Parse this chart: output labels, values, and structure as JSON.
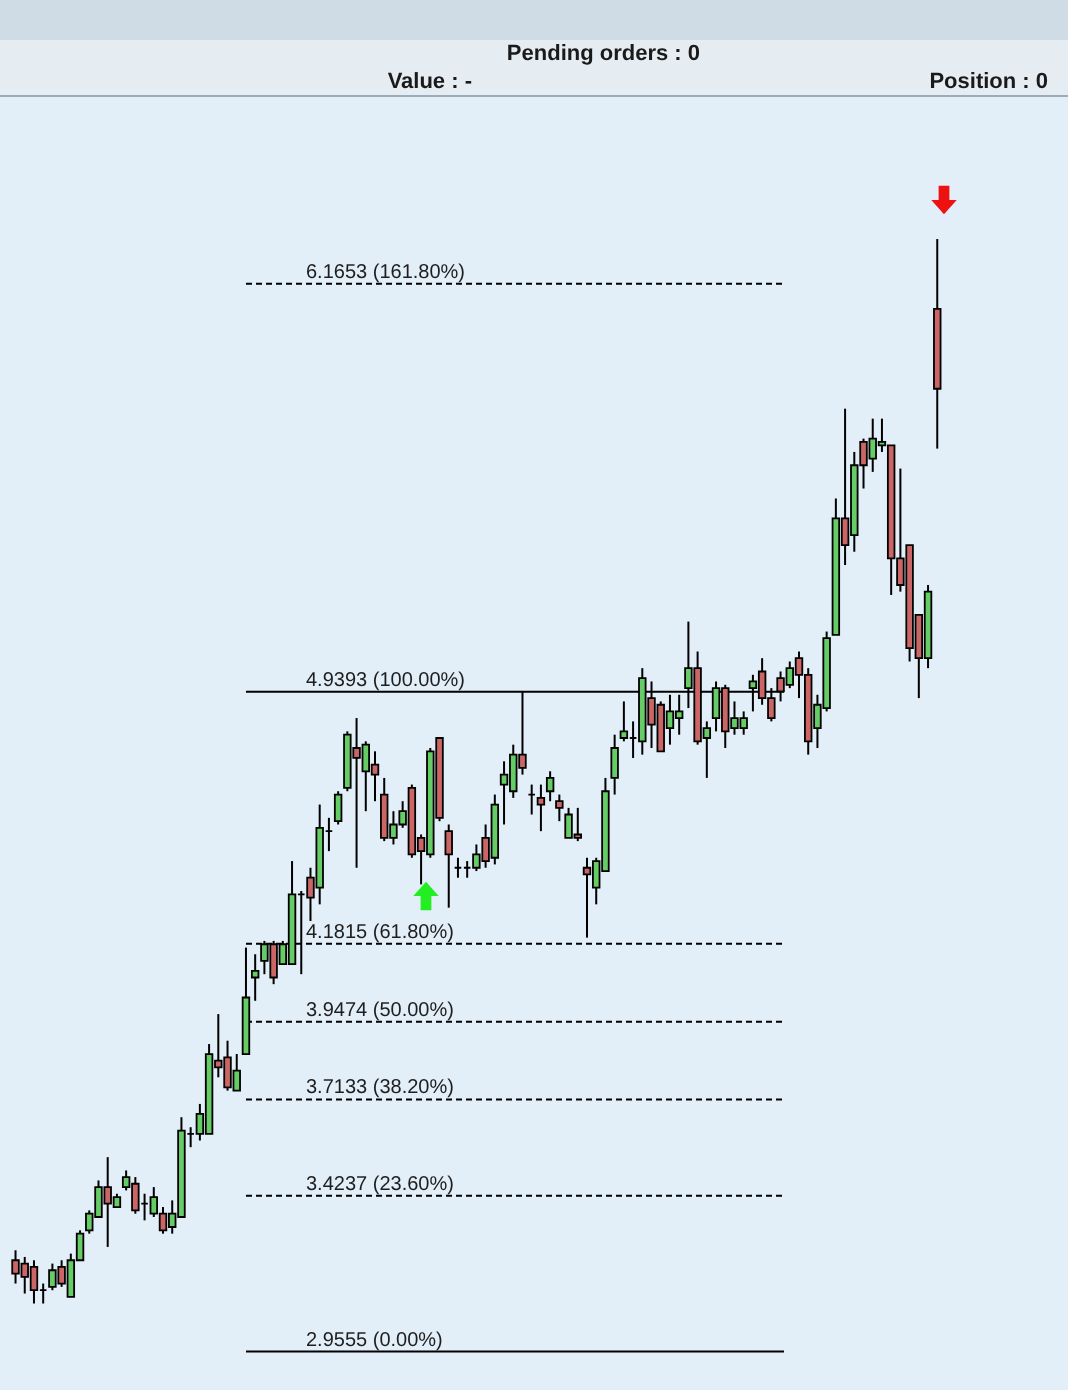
{
  "chart_data": {
    "type": "candlestick",
    "categories": [
      null,
      null,
      null,
      null,
      null,
      null,
      null,
      null,
      null,
      null,
      null,
      null,
      null,
      null,
      null,
      null,
      null,
      null,
      null,
      null,
      null,
      null,
      null,
      null,
      null,
      null,
      null,
      null,
      null,
      null,
      null,
      null,
      null,
      null,
      null,
      null,
      null,
      null,
      null,
      null,
      null,
      null,
      null,
      null,
      null,
      null,
      null,
      null,
      null,
      null,
      null,
      null,
      null,
      null,
      null,
      null,
      null,
      null,
      null,
      null,
      null,
      null,
      null,
      null,
      null,
      null,
      null,
      null,
      null,
      null,
      null,
      null,
      null,
      null,
      null,
      null,
      null,
      null,
      null,
      null,
      null,
      null,
      null,
      null,
      null,
      null,
      null,
      null,
      null,
      null,
      null,
      null,
      null,
      null,
      null,
      null,
      null,
      null,
      null,
      null,
      null
    ],
    "ohlc": [
      [
        3.23,
        3.26,
        3.16,
        3.19
      ],
      [
        3.22,
        3.24,
        3.13,
        3.18
      ],
      [
        3.21,
        3.23,
        3.1,
        3.14
      ],
      [
        3.14,
        3.16,
        3.1,
        3.14
      ],
      [
        3.15,
        3.22,
        3.14,
        3.2
      ],
      [
        3.21,
        3.23,
        3.15,
        3.16
      ],
      [
        3.12,
        3.25,
        3.12,
        3.23
      ],
      [
        3.23,
        3.32,
        3.23,
        3.31
      ],
      [
        3.32,
        3.38,
        3.31,
        3.37
      ],
      [
        3.36,
        3.47,
        3.36,
        3.45
      ],
      [
        3.45,
        3.54,
        3.27,
        3.4
      ],
      [
        3.39,
        3.43,
        3.39,
        3.42
      ],
      [
        3.45,
        3.5,
        3.44,
        3.48
      ],
      [
        3.46,
        3.48,
        3.37,
        3.38
      ],
      [
        3.4,
        3.43,
        3.35,
        3.4
      ],
      [
        3.37,
        3.45,
        3.36,
        3.42
      ],
      [
        3.37,
        3.39,
        3.31,
        3.32
      ],
      [
        3.33,
        3.41,
        3.31,
        3.37
      ],
      [
        3.36,
        3.66,
        3.36,
        3.62
      ],
      [
        3.61,
        3.63,
        3.57,
        3.61
      ],
      [
        3.61,
        3.7,
        3.59,
        3.67
      ],
      [
        3.61,
        3.88,
        3.61,
        3.85
      ],
      [
        3.83,
        3.97,
        3.78,
        3.81
      ],
      [
        3.84,
        3.89,
        3.74,
        3.75
      ],
      [
        3.74,
        3.85,
        3.74,
        3.8
      ],
      [
        3.85,
        4.17,
        3.85,
        4.02
      ],
      [
        4.08,
        4.15,
        4.01,
        4.1
      ],
      [
        4.13,
        4.19,
        4.09,
        4.18
      ],
      [
        4.18,
        4.19,
        4.06,
        4.08
      ],
      [
        4.12,
        4.19,
        4.12,
        4.18
      ],
      [
        4.12,
        4.43,
        4.12,
        4.33
      ],
      [
        4.33,
        4.34,
        4.09,
        4.33
      ],
      [
        4.38,
        4.41,
        4.25,
        4.32
      ],
      [
        4.35,
        4.6,
        4.3,
        4.53
      ],
      [
        4.52,
        4.56,
        4.46,
        4.52
      ],
      [
        4.55,
        4.64,
        4.54,
        4.63
      ],
      [
        4.65,
        4.82,
        4.64,
        4.81
      ],
      [
        4.77,
        4.86,
        4.41,
        4.74
      ],
      [
        4.7,
        4.79,
        4.58,
        4.78
      ],
      [
        4.72,
        4.76,
        4.61,
        4.69
      ],
      [
        4.63,
        4.68,
        4.49,
        4.5
      ],
      [
        4.5,
        4.58,
        4.48,
        4.54
      ],
      [
        4.54,
        4.61,
        4.53,
        4.58
      ],
      [
        4.65,
        4.66,
        4.44,
        4.45
      ],
      [
        4.5,
        4.51,
        4.36,
        4.46
      ],
      [
        4.45,
        4.77,
        4.44,
        4.76
      ],
      [
        4.8,
        4.8,
        4.55,
        4.56
      ],
      [
        4.52,
        4.54,
        4.29,
        4.45
      ],
      [
        4.41,
        4.44,
        4.38,
        4.41
      ],
      [
        4.41,
        4.43,
        4.38,
        4.41
      ],
      [
        4.41,
        4.48,
        4.4,
        4.45
      ],
      [
        4.5,
        4.54,
        4.41,
        4.43
      ],
      [
        4.44,
        4.63,
        4.42,
        4.6
      ],
      [
        4.66,
        4.73,
        4.54,
        4.69
      ],
      [
        4.64,
        4.78,
        4.62,
        4.75
      ],
      [
        4.75,
        4.94,
        4.69,
        4.71
      ],
      [
        4.63,
        4.66,
        4.57,
        4.63
      ],
      [
        4.62,
        4.66,
        4.52,
        4.6
      ],
      [
        4.64,
        4.7,
        4.61,
        4.68
      ],
      [
        4.61,
        4.63,
        4.55,
        4.59
      ],
      [
        4.5,
        4.59,
        4.5,
        4.57
      ],
      [
        4.51,
        4.59,
        4.49,
        4.5
      ],
      [
        4.41,
        4.44,
        4.2,
        4.39
      ],
      [
        4.35,
        4.44,
        4.3,
        4.43
      ],
      [
        4.4,
        4.68,
        4.4,
        4.64
      ],
      [
        4.68,
        4.81,
        4.63,
        4.77
      ],
      [
        4.8,
        4.91,
        4.79,
        4.82
      ],
      [
        4.8,
        4.85,
        4.74,
        4.8
      ],
      [
        4.79,
        5.01,
        4.75,
        4.98
      ],
      [
        4.92,
        4.97,
        4.77,
        4.84
      ],
      [
        4.9,
        4.91,
        4.76,
        4.76
      ],
      [
        4.83,
        4.93,
        4.78,
        4.88
      ],
      [
        4.86,
        4.93,
        4.81,
        4.88
      ],
      [
        4.95,
        5.15,
        4.89,
        5.01
      ],
      [
        5.01,
        5.06,
        4.78,
        4.79
      ],
      [
        4.8,
        4.85,
        4.68,
        4.83
      ],
      [
        4.86,
        4.97,
        4.82,
        4.95
      ],
      [
        4.95,
        4.96,
        4.77,
        4.82
      ],
      [
        4.83,
        4.91,
        4.81,
        4.86
      ],
      [
        4.83,
        4.88,
        4.81,
        4.86
      ],
      [
        4.95,
        4.99,
        4.88,
        4.97
      ],
      [
        5.0,
        5.04,
        4.9,
        4.92
      ],
      [
        4.92,
        4.95,
        4.85,
        4.86
      ],
      [
        4.98,
        5.0,
        4.91,
        4.94
      ],
      [
        4.96,
        5.03,
        4.95,
        5.01
      ],
      [
        5.04,
        5.06,
        4.92,
        4.99
      ],
      [
        4.99,
        5.01,
        4.75,
        4.79
      ],
      [
        4.83,
        4.93,
        4.77,
        4.9
      ],
      [
        4.89,
        5.12,
        4.88,
        5.1
      ],
      [
        5.11,
        5.52,
        5.11,
        5.46
      ],
      [
        5.46,
        5.79,
        5.32,
        5.38
      ],
      [
        5.41,
        5.66,
        5.36,
        5.62
      ],
      [
        5.69,
        5.7,
        5.55,
        5.62
      ],
      [
        5.64,
        5.76,
        5.6,
        5.7
      ],
      [
        5.68,
        5.76,
        5.66,
        5.69
      ],
      [
        5.68,
        5.68,
        5.23,
        5.34
      ],
      [
        5.34,
        5.61,
        5.24,
        5.26
      ],
      [
        5.38,
        5.38,
        5.03,
        5.07
      ],
      [
        5.17,
        5.17,
        4.92,
        5.04
      ],
      [
        5.04,
        5.26,
        5.01,
        5.24
      ],
      [
        6.09,
        6.3,
        5.67,
        5.85
      ]
    ],
    "colors": [
      "#cc6666",
      "#cc6666",
      "#cc6666",
      "#000000",
      "#66cc66",
      "#cc6666",
      "#66cc66",
      "#66cc66",
      "#66cc66",
      "#66cc66",
      "#cc6666",
      "#66cc66",
      "#66cc66",
      "#cc6666",
      "#000000",
      "#66cc66",
      "#cc6666",
      "#66cc66",
      "#66cc66",
      "#000000",
      "#66cc66",
      "#66cc66",
      "#cc6666",
      "#cc6666",
      "#66cc66",
      "#66cc66",
      "#66cc66",
      "#66cc66",
      "#cc6666",
      "#66cc66",
      "#66cc66",
      "#000000",
      "#cc6666",
      "#66cc66",
      "#000000",
      "#66cc66",
      "#66cc66",
      "#cc6666",
      "#66cc66",
      "#cc6666",
      "#cc6666",
      "#66cc66",
      "#66cc66",
      "#cc6666",
      "#cc6666",
      "#66cc66",
      "#cc6666",
      "#cc6666",
      "#000000",
      "#000000",
      "#66cc66",
      "#cc6666",
      "#66cc66",
      "#66cc66",
      "#66cc66",
      "#cc6666",
      "#000000",
      "#cc6666",
      "#66cc66",
      "#cc6666",
      "#66cc66",
      "#cc6666",
      "#cc6666",
      "#66cc66",
      "#66cc66",
      "#66cc66",
      "#66cc66",
      "#000000",
      "#66cc66",
      "#cc6666",
      "#cc6666",
      "#66cc66",
      "#66cc66",
      "#66cc66",
      "#cc6666",
      "#66cc66",
      "#66cc66",
      "#cc6666",
      "#66cc66",
      "#66cc66",
      "#66cc66",
      "#cc6666",
      "#cc6666",
      "#cc6666",
      "#66cc66",
      "#cc6666",
      "#cc6666",
      "#66cc66",
      "#66cc66",
      "#66cc66",
      "#cc6666",
      "#66cc66",
      "#cc6666",
      "#66cc66",
      "#66cc66",
      "#cc6666",
      "#cc6666",
      "#cc6666",
      "#cc6666",
      "#66cc66",
      "#cc6666"
    ],
    "ylim": [
      2.84,
      6.73
    ],
    "tick_labels": false,
    "ref_lines": [
      {
        "axis": "y",
        "value": 6.1653,
        "label": "6.1653 (161.80%)",
        "line_style": "dashed"
      },
      {
        "axis": "y",
        "value": 4.9393,
        "label": "4.9393 (100.00%)",
        "line_style": "solid"
      },
      {
        "axis": "y",
        "value": 4.1815,
        "label": "4.1815 (61.80%)",
        "line_style": "dashed"
      },
      {
        "axis": "y",
        "value": 3.9474,
        "label": "3.9474 (50.00%)",
        "line_style": "dashed"
      },
      {
        "axis": "y",
        "value": 3.7133,
        "label": "3.7133 (38.20%)",
        "line_style": "dashed"
      },
      {
        "axis": "y",
        "value": 3.4237,
        "label": "3.4237 (23.60%)",
        "line_style": "dashed"
      },
      {
        "axis": "y",
        "value": 2.9555,
        "label": "2.9555 (0.00%)",
        "line_style": "solid"
      }
    ],
    "annotations": [
      "Pending orders : 0",
      "Value : -",
      "Position : 0"
    ]
  }
}
